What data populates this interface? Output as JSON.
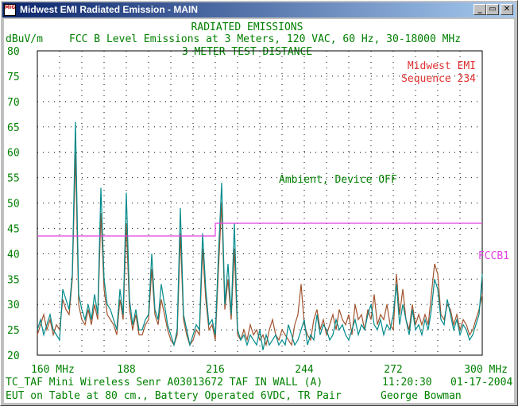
{
  "window": {
    "title": "Midwest EMI Radiated Emission - MAIN",
    "icon_text": "MIG",
    "minimize_label": "_",
    "maximize_label": "▭",
    "close_label": "✕"
  },
  "chart_data": {
    "type": "line",
    "title": "RADIATED EMISSIONS",
    "subtitle": "FCC B Level Emissions at 3 Meters, 120 VAC, 60 Hz, 30-18000 MHz",
    "subtitle2": "3 METER TEST DISTANCE",
    "ylabel": "dBuV/m",
    "xlim": [
      160,
      300
    ],
    "ylim": [
      20,
      80
    ],
    "x_ticks": [
      {
        "value": 160,
        "label": "160 MHz"
      },
      {
        "value": 188,
        "label": "188"
      },
      {
        "value": 216,
        "label": "216"
      },
      {
        "value": 244,
        "label": "244"
      },
      {
        "value": 272,
        "label": "272"
      },
      {
        "value": 300,
        "label": "300 MHz"
      }
    ],
    "y_ticks": [
      20,
      25,
      30,
      35,
      40,
      45,
      50,
      55,
      60,
      65,
      70,
      75,
      80
    ],
    "grid": true,
    "limit_line": {
      "label": "FCCB1",
      "color": "#e040e0",
      "x": [
        160,
        216,
        216,
        300
      ],
      "y": [
        43.5,
        43.5,
        46,
        46
      ]
    },
    "annotations": [
      {
        "text": "Midwest EMI",
        "color": "#e03030"
      },
      {
        "text": "Sequence 234",
        "color": "#e03030"
      },
      {
        "text": "Ambient, Device OFF",
        "color": "#008000"
      }
    ],
    "series": [
      {
        "color": "#008b8b",
        "x": [
          160,
          161,
          162,
          163,
          164,
          165,
          166,
          167,
          168,
          169,
          170,
          171,
          172,
          173,
          174,
          175,
          176,
          177,
          178,
          179,
          180,
          181,
          182,
          183,
          184,
          185,
          186,
          187,
          188,
          189,
          190,
          191,
          192,
          193,
          194,
          195,
          196,
          197,
          198,
          199,
          200,
          201,
          202,
          203,
          204,
          205,
          206,
          207,
          208,
          209,
          210,
          211,
          212,
          213,
          214,
          215,
          216,
          217,
          218,
          219,
          220,
          221,
          222,
          223,
          224,
          225,
          226,
          227,
          228,
          229,
          230,
          231,
          232,
          233,
          234,
          235,
          236,
          237,
          238,
          239,
          240,
          241,
          242,
          243,
          244,
          245,
          246,
          247,
          248,
          249,
          250,
          251,
          252,
          253,
          254,
          255,
          256,
          257,
          258,
          259,
          260,
          261,
          262,
          263,
          264,
          265,
          266,
          267,
          268,
          269,
          270,
          271,
          272,
          273,
          274,
          275,
          276,
          277,
          278,
          279,
          280,
          281,
          282,
          283,
          284,
          285,
          286,
          287,
          288,
          289,
          290,
          291,
          292,
          293,
          294,
          295,
          296,
          297,
          298,
          299,
          300
        ],
        "y": [
          25,
          27,
          24,
          26,
          28,
          25,
          24,
          23,
          33,
          31,
          29,
          36,
          66,
          32,
          29,
          27,
          30,
          27,
          32,
          28,
          53,
          35,
          30,
          29,
          27,
          25,
          33,
          28,
          52,
          31,
          26,
          29,
          25,
          25,
          27,
          28,
          40,
          29,
          27,
          34,
          30,
          26,
          24,
          22,
          25,
          49,
          28,
          25,
          22,
          24,
          26,
          25,
          44,
          33,
          26,
          27,
          24,
          40,
          54,
          30,
          38,
          28,
          46,
          25,
          23,
          24,
          22,
          24,
          23,
          22,
          25,
          21,
          24,
          22,
          23,
          24,
          22,
          23,
          22,
          26,
          24,
          22,
          23,
          25,
          27,
          22,
          24,
          23,
          28,
          24,
          26,
          25,
          23,
          24,
          27,
          25,
          26,
          24,
          23,
          25,
          27,
          24,
          26,
          25,
          28,
          30,
          26,
          25,
          27,
          24,
          26,
          25,
          28,
          34,
          26,
          30,
          27,
          24,
          29,
          25,
          26,
          24,
          27,
          25,
          29,
          35,
          33,
          27,
          26,
          31,
          28,
          25,
          27,
          24,
          26,
          25,
          23,
          24,
          26,
          28,
          36
        ]
      },
      {
        "color": "#a0522d",
        "x": [
          160,
          161,
          162,
          163,
          164,
          165,
          166,
          167,
          168,
          169,
          170,
          171,
          172,
          173,
          174,
          175,
          176,
          177,
          178,
          179,
          180,
          181,
          182,
          183,
          184,
          185,
          186,
          187,
          188,
          189,
          190,
          191,
          192,
          193,
          194,
          195,
          196,
          197,
          198,
          199,
          200,
          201,
          202,
          203,
          204,
          205,
          206,
          207,
          208,
          209,
          210,
          211,
          212,
          213,
          214,
          215,
          216,
          217,
          218,
          219,
          220,
          221,
          222,
          223,
          224,
          225,
          226,
          227,
          228,
          229,
          230,
          231,
          232,
          233,
          234,
          235,
          236,
          237,
          238,
          239,
          240,
          241,
          242,
          243,
          244,
          245,
          246,
          247,
          248,
          249,
          250,
          251,
          252,
          253,
          254,
          255,
          256,
          257,
          258,
          259,
          260,
          261,
          262,
          263,
          264,
          265,
          266,
          267,
          268,
          269,
          270,
          271,
          272,
          273,
          274,
          275,
          276,
          277,
          278,
          279,
          280,
          281,
          282,
          283,
          284,
          285,
          286,
          287,
          288,
          289,
          290,
          291,
          292,
          293,
          294,
          295,
          296,
          297,
          298,
          299,
          300
        ],
        "y": [
          24,
          26,
          28,
          25,
          27,
          24,
          26,
          25,
          31,
          29,
          28,
          35,
          60,
          30,
          27,
          26,
          29,
          26,
          30,
          27,
          48,
          33,
          28,
          27,
          26,
          24,
          31,
          27,
          46,
          29,
          25,
          28,
          24,
          24,
          26,
          27,
          37,
          28,
          26,
          31,
          28,
          25,
          23,
          22,
          24,
          44,
          27,
          24,
          22,
          23,
          25,
          24,
          41,
          31,
          25,
          26,
          23,
          37,
          50,
          29,
          35,
          27,
          41,
          24,
          23,
          25,
          23,
          26,
          24,
          25,
          23,
          24,
          22,
          25,
          27,
          24,
          23,
          25,
          24,
          23,
          22,
          26,
          28,
          34,
          26,
          24,
          23,
          27,
          29,
          25,
          27,
          24,
          26,
          28,
          25,
          29,
          27,
          26,
          28,
          24,
          30,
          27,
          28,
          25,
          29,
          27,
          32,
          26,
          28,
          27,
          30,
          26,
          25,
          36,
          28,
          33,
          27,
          25,
          30,
          26,
          28,
          26,
          28,
          26,
          32,
          38,
          36,
          28,
          27,
          30,
          29,
          26,
          28,
          25,
          27,
          26,
          24,
          25,
          27,
          29,
          32
        ]
      }
    ]
  },
  "footer": {
    "line1_left": "TC_TAF Mini Wireless Senr  A03013672 TAF IN WALL (A)",
    "time": "11:20:30",
    "date": "01-17-2004",
    "line2_left": "EUT on Table at 80 cm., Battery Operated 6VDC, TR Pair",
    "operator": "George Bowman"
  }
}
